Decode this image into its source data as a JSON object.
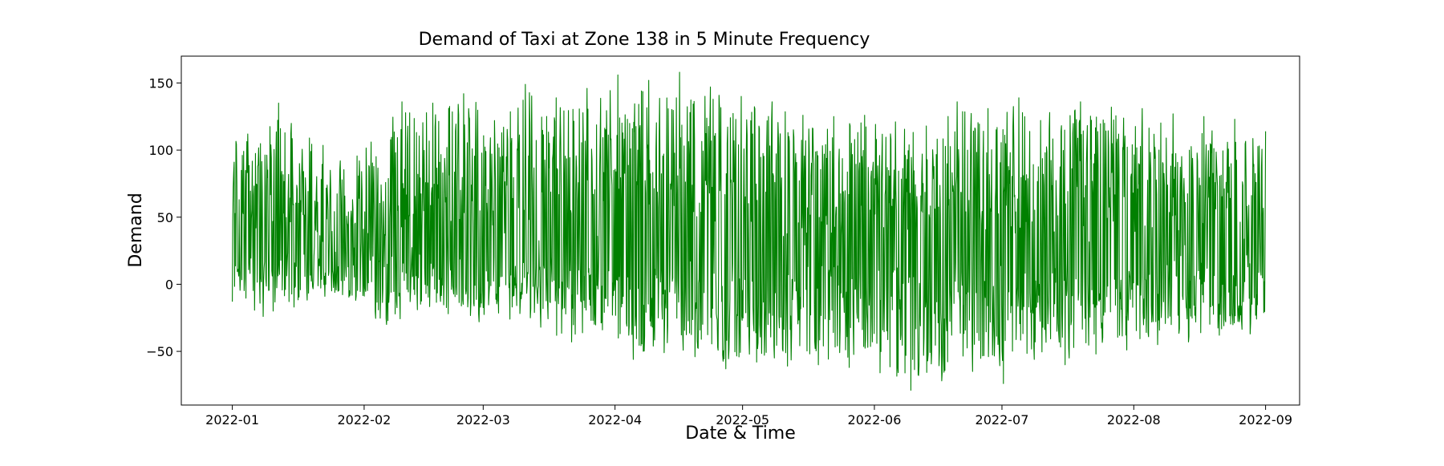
{
  "chart_data": {
    "type": "line",
    "title": "Demand of Taxi at Zone 138 in 5 Minute Frequency",
    "xlabel": "Date & Time",
    "ylabel": "Demand",
    "x_ticks": [
      "2022-01",
      "2022-02",
      "2022-03",
      "2022-04",
      "2022-05",
      "2022-06",
      "2022-07",
      "2022-08",
      "2022-09"
    ],
    "y_ticks": [
      150,
      100,
      50,
      0,
      -50
    ],
    "xlim": [
      "2021-12-20",
      "2022-09-09"
    ],
    "ylim": [
      -90,
      170
    ],
    "x_range": [
      "2022-01-01",
      "2022-09-01"
    ],
    "grid": false,
    "legend": "none",
    "line_color": "#008000",
    "series": [
      {
        "x_start": "2022-01-01",
        "x_end": "2022-09-01",
        "approx_values": [
          -13,
          112,
          -24,
          135,
          -17,
          109,
          -9,
          92,
          -12,
          106,
          -30,
          136,
          -19,
          135,
          -22,
          142,
          -28,
          122,
          -26,
          149,
          -32,
          139,
          -43,
          146,
          -34,
          156,
          -56,
          152,
          -51,
          158,
          -54,
          147,
          -63,
          140,
          -58,
          136,
          -61,
          126,
          -60,
          125,
          -62,
          126,
          -66,
          121,
          -79,
          118,
          -72,
          136,
          -65,
          131,
          -74,
          139,
          -56,
          128,
          -60,
          136,
          -52,
          132,
          -49,
          131,
          -45,
          127,
          -43,
          125,
          -38,
          123,
          -37,
          114
        ]
      }
    ]
  }
}
